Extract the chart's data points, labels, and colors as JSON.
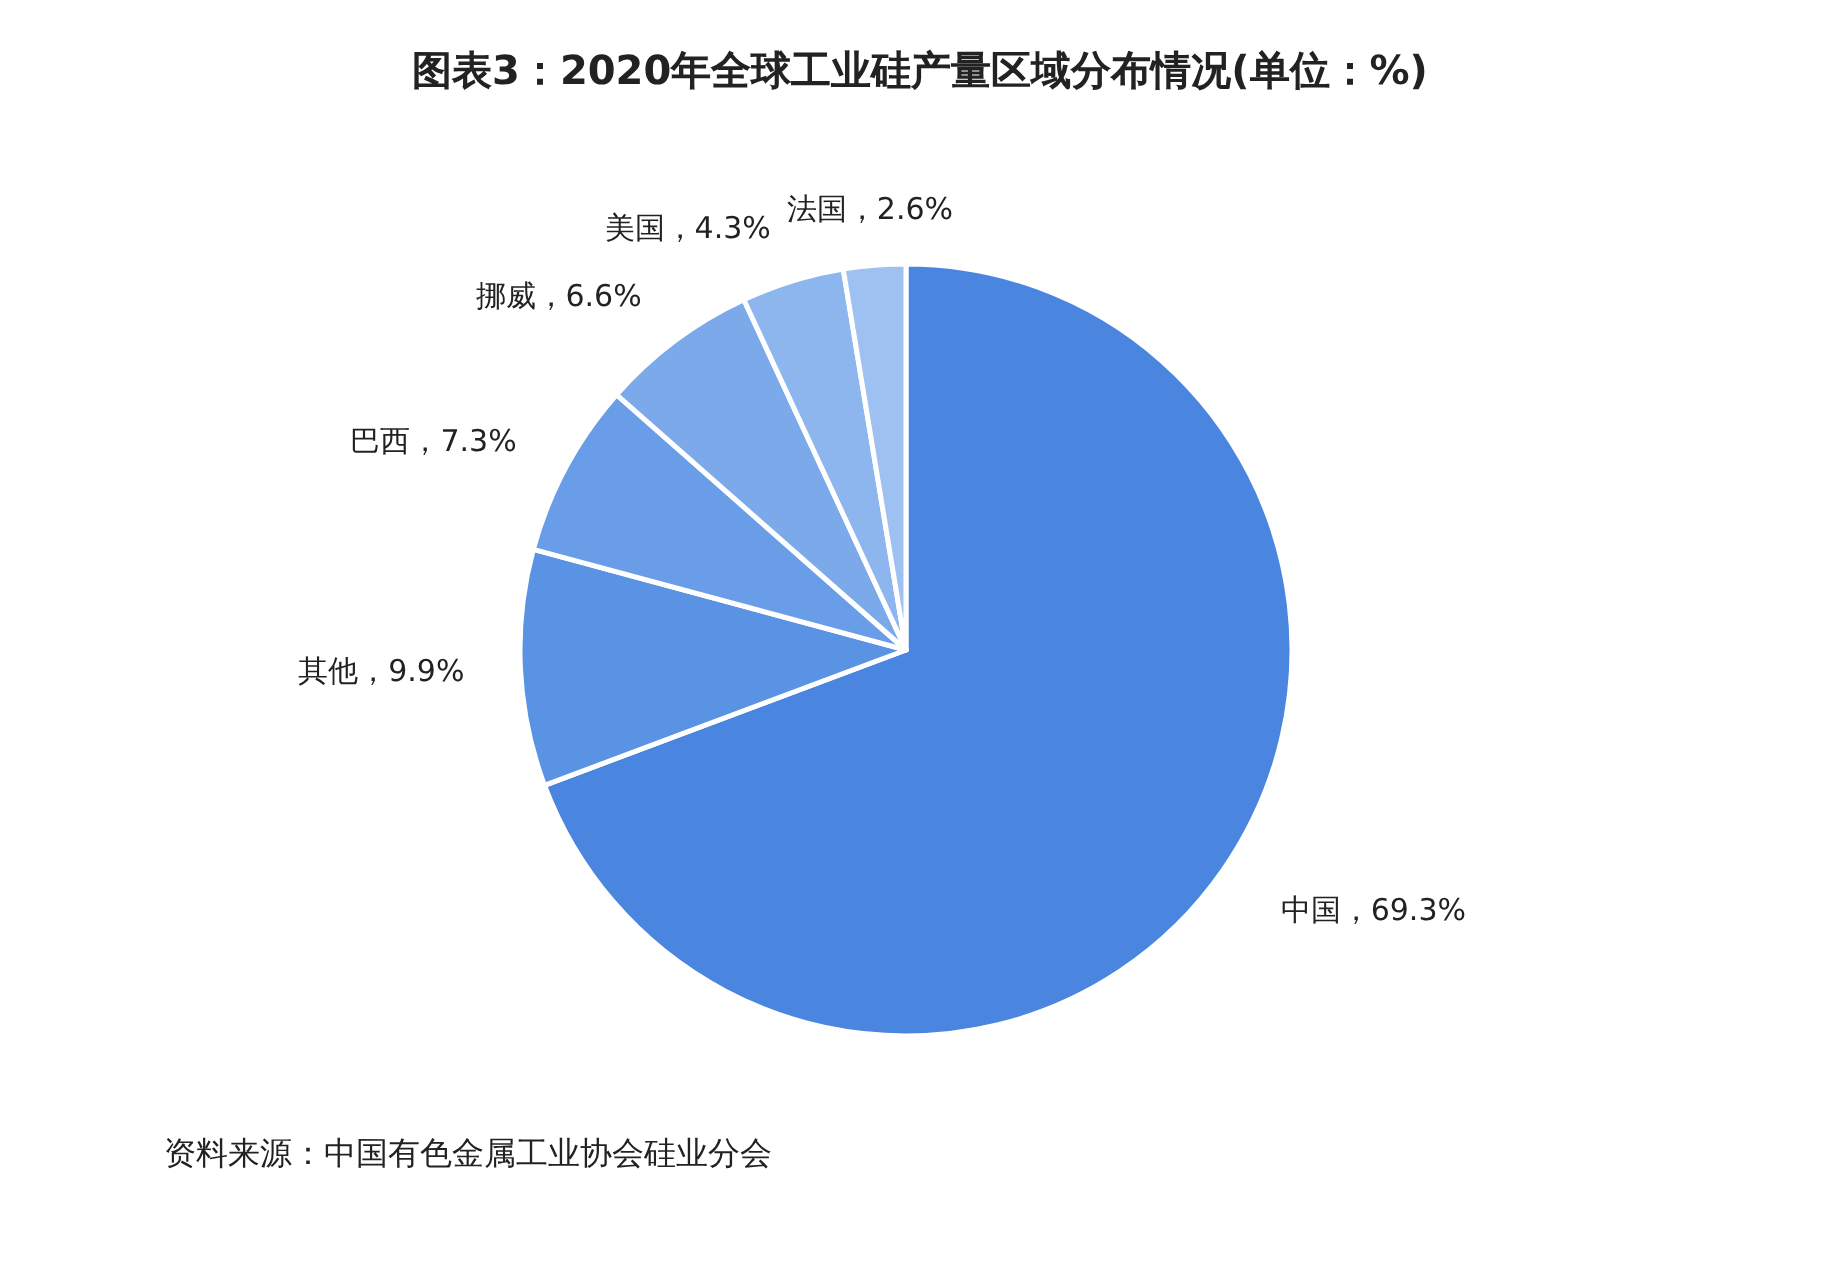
{
  "chart_data": {
    "type": "pie",
    "title": "图表3：2020年全球工业硅产量区域分布情况(单位：%)",
    "categories": [
      "中国",
      "其他",
      "巴西",
      "挪威",
      "美国",
      "法国"
    ],
    "values": [
      69.3,
      9.9,
      7.3,
      6.6,
      4.3,
      2.6
    ],
    "value_labels": [
      "69.3%",
      "9.9%",
      "7.3%",
      "6.6%",
      "4.3%",
      "2.6%"
    ],
    "colors": [
      "#4a86e0",
      "#5a92e4",
      "#6a9de7",
      "#7ba9ea",
      "#8db5ee",
      "#9fc1f1"
    ],
    "annotations": [
      "资料来源：中国有色金属工业协会硅业分会"
    ]
  }
}
